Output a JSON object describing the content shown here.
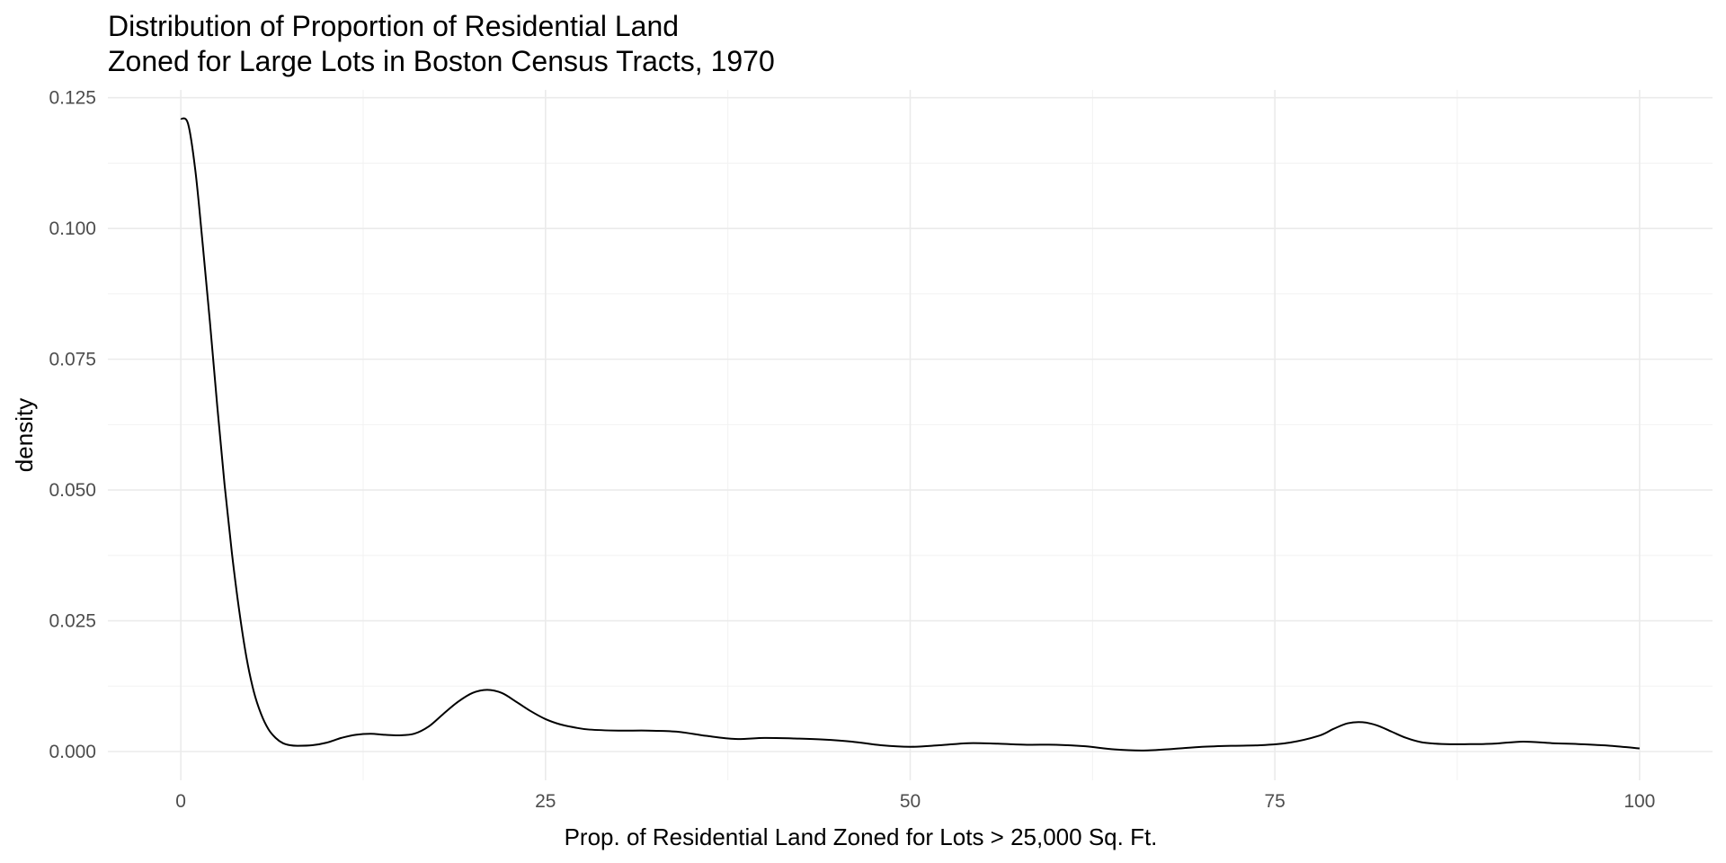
{
  "chart_data": {
    "type": "line",
    "geom": "density",
    "title": "Distribution of Proportion of Residential Land\nZoned for Large Lots in Boston Census Tracts, 1970",
    "title_lines": [
      "Distribution of Proportion of Residential Land",
      "Zoned for Large Lots in Boston Census Tracts, 1970"
    ],
    "xlabel": "Prop. of Residential Land Zoned for Lots > 25,000 Sq. Ft.",
    "ylabel": "density",
    "xlim": [
      -5,
      105
    ],
    "ylim": [
      -0.0055,
      0.1265
    ],
    "x_ticks": [
      0,
      25,
      50,
      75,
      100
    ],
    "x_tick_labels": [
      "0",
      "25",
      "50",
      "75",
      "100"
    ],
    "y_ticks": [
      0,
      0.025,
      0.05,
      0.075,
      0.1,
      0.125
    ],
    "y_tick_labels": [
      "0.000",
      "0.025",
      "0.050",
      "0.075",
      "0.100",
      "0.125"
    ],
    "grid": true,
    "legend": "none",
    "line_color": "#000000",
    "grid_color": "#ebebeb",
    "series": [
      {
        "x": [
          0,
          0.5,
          1,
          1.5,
          2,
          2.5,
          3,
          3.5,
          4,
          4.5,
          5,
          5.5,
          6,
          6.5,
          7,
          7.5,
          8,
          9,
          10,
          11,
          12,
          13,
          14,
          15,
          16,
          17,
          18,
          19,
          20,
          21,
          22,
          23,
          24,
          25,
          26,
          27,
          28,
          30,
          32,
          34,
          36,
          38,
          40,
          42,
          44,
          46,
          48,
          50,
          52,
          54,
          56,
          58,
          60,
          62,
          64,
          66,
          68,
          70,
          72,
          74,
          76,
          78,
          79,
          80,
          81,
          82,
          83,
          84,
          85,
          86,
          87,
          88,
          90,
          92,
          94,
          96,
          98,
          100
        ],
        "y": [
          0.121,
          0.12,
          0.111,
          0.097,
          0.082,
          0.066,
          0.051,
          0.038,
          0.027,
          0.018,
          0.0115,
          0.0072,
          0.0043,
          0.0026,
          0.0016,
          0.0012,
          0.0011,
          0.0012,
          0.0017,
          0.0026,
          0.0032,
          0.0034,
          0.0032,
          0.0031,
          0.0034,
          0.0048,
          0.0072,
          0.0095,
          0.0112,
          0.0118,
          0.0112,
          0.0095,
          0.0077,
          0.0062,
          0.0052,
          0.0046,
          0.0042,
          0.004,
          0.004,
          0.0038,
          0.003,
          0.0024,
          0.0026,
          0.0025,
          0.0023,
          0.0019,
          0.0012,
          0.0009,
          0.0012,
          0.0016,
          0.0015,
          0.0013,
          0.0013,
          0.001,
          0.0004,
          0.0002,
          0.0005,
          0.0009,
          0.0011,
          0.0012,
          0.0017,
          0.003,
          0.0043,
          0.0054,
          0.0056,
          0.005,
          0.0038,
          0.0026,
          0.0018,
          0.0015,
          0.0014,
          0.0014,
          0.0015,
          0.0019,
          0.0016,
          0.0014,
          0.0011,
          0.0006
        ]
      }
    ]
  }
}
